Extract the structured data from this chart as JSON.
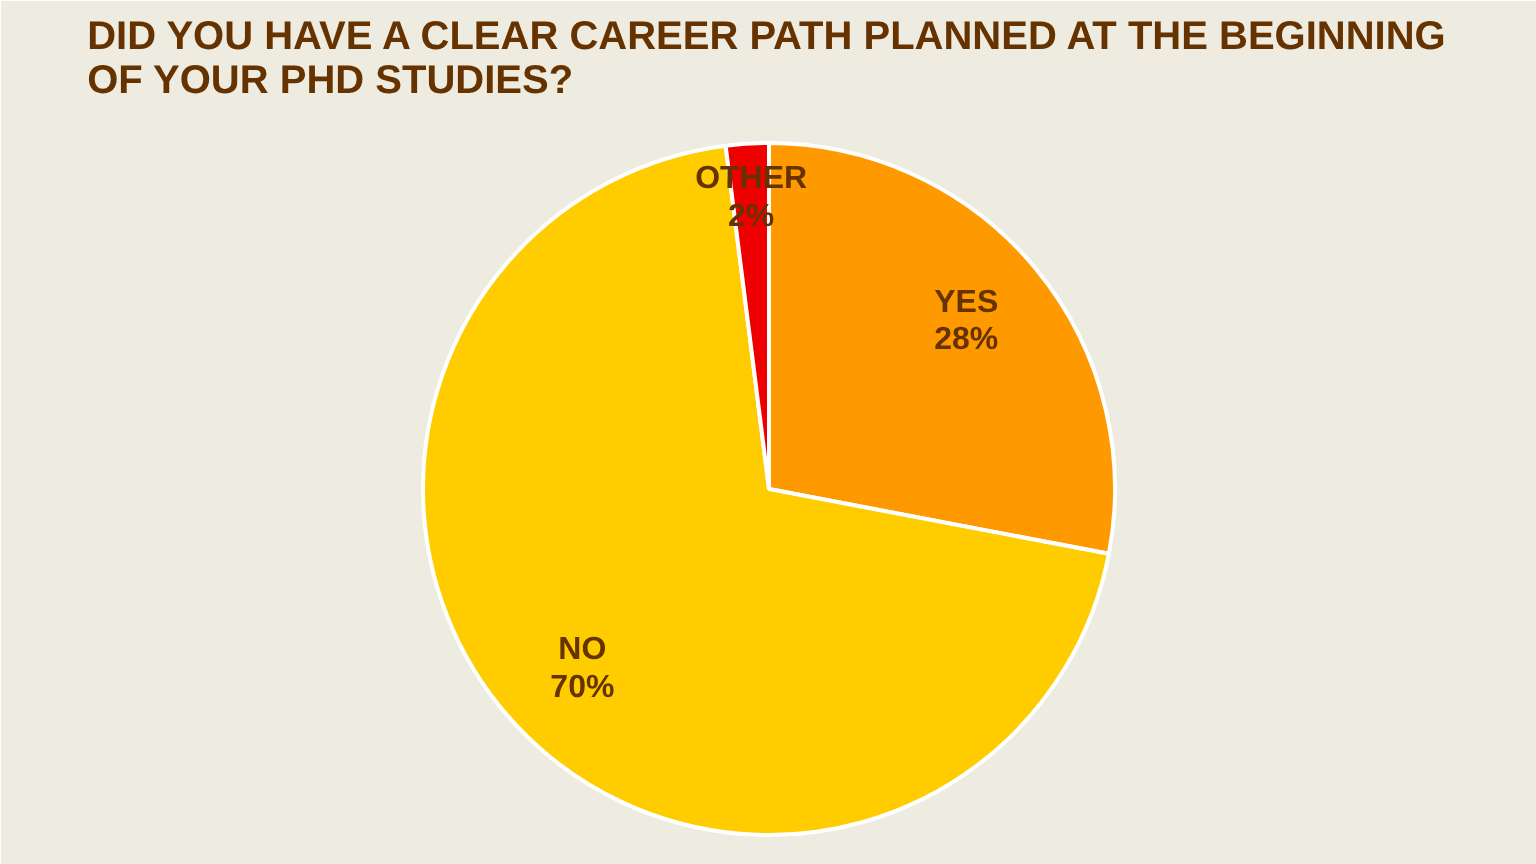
{
  "chart_data": {
    "type": "pie",
    "title": "DID YOU HAVE A CLEAR CAREER PATH PLANNED AT THE BEGINNING OF YOUR PHD STUDIES?",
    "categories": [
      "YES",
      "NO",
      "OTHER"
    ],
    "values": [
      28,
      70,
      2
    ],
    "value_labels": [
      "28%",
      "70%",
      "2%"
    ],
    "colors": [
      "#ff9900",
      "#ffcc00",
      "#ee0000"
    ]
  }
}
